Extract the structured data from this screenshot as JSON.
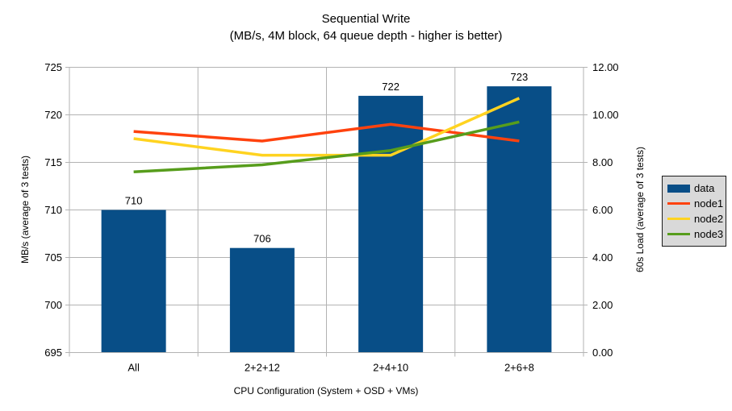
{
  "chart": {
    "title": "Sequential Write",
    "subtitle": "(MB/s, 4M block, 64 queue depth - higher is better)",
    "xlabel": "CPU Configuration (System + OSD + VMs)",
    "ylabel_left": "MB/s (average of 3 tests)",
    "ylabel_right": "60s Load (average of 3 tests)"
  },
  "chart_data": {
    "type": "bar+line combo",
    "categories": [
      "All",
      "2+2+12",
      "2+4+10",
      "2+6+8"
    ],
    "bar_series": {
      "name": "data",
      "axis": "left",
      "values": [
        710,
        706,
        722,
        723
      ],
      "labels": [
        "710",
        "706",
        "722",
        "723"
      ],
      "color": "#084e87"
    },
    "line_series": [
      {
        "name": "node1",
        "axis": "right",
        "values": [
          9.3,
          8.9,
          9.6,
          8.9
        ],
        "color": "#ff420e"
      },
      {
        "name": "node2",
        "axis": "right",
        "values": [
          9.0,
          8.3,
          8.3,
          10.7
        ],
        "color": "#ffd320"
      },
      {
        "name": "node3",
        "axis": "right",
        "values": [
          7.6,
          7.9,
          8.5,
          9.7
        ],
        "color": "#579d1c"
      }
    ],
    "axis_left": {
      "min": 695,
      "max": 725,
      "step": 5,
      "ticks": [
        "695",
        "700",
        "705",
        "710",
        "715",
        "720",
        "725"
      ]
    },
    "axis_right": {
      "min": 0,
      "max": 12,
      "step": 2,
      "ticks": [
        "0.00",
        "2.00",
        "4.00",
        "6.00",
        "8.00",
        "10.00",
        "12.00"
      ]
    },
    "grid": {
      "horizontal": true,
      "vertical": true
    },
    "legend": {
      "position": "right",
      "items": [
        {
          "label": "data",
          "color": "#084e87",
          "shape": "rect"
        },
        {
          "label": "node1",
          "color": "#ff420e",
          "shape": "line"
        },
        {
          "label": "node2",
          "color": "#ffd320",
          "shape": "line"
        },
        {
          "label": "node3",
          "color": "#579d1c",
          "shape": "line"
        }
      ]
    },
    "colors": {
      "background": "#ffffff",
      "gridline": "#b3b3b3",
      "axis": "#b3b3b3",
      "text": "#000000",
      "legend_bg": "#d9d9d9",
      "legend_border": "#1a1a1a"
    }
  }
}
